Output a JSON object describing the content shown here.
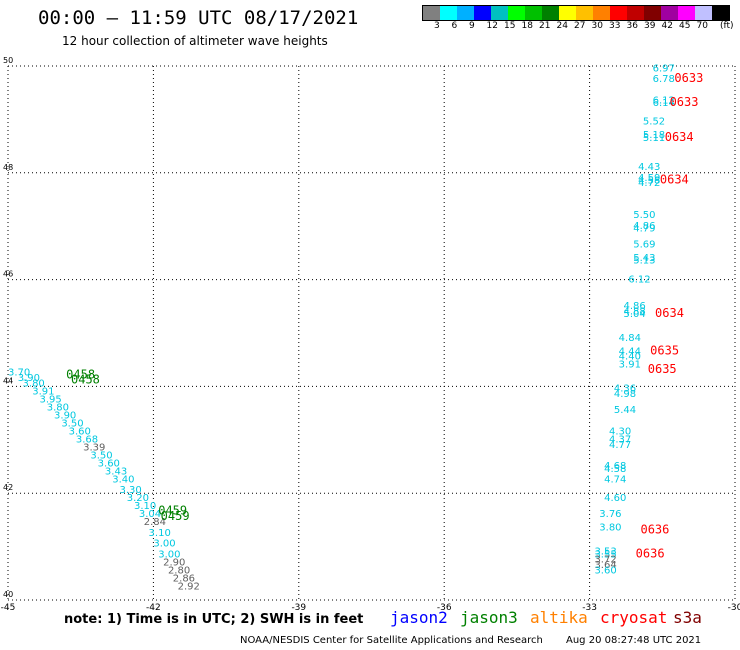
{
  "header": {
    "title": "00:00 – 11:59 UTC 08/17/2021",
    "subtitle": "12 hour collection of altimeter wave heights"
  },
  "legend": {
    "colors": [
      "#808080",
      "#00ffff",
      "#00b0ff",
      "#0000ff",
      "#00c0c0",
      "#00ff00",
      "#00c000",
      "#008000",
      "#ffff00",
      "#ffc000",
      "#ff8000",
      "#ff0000",
      "#c00000",
      "#800000",
      "#a000a0",
      "#ff00ff",
      "#c0c0ff",
      "#000000"
    ],
    "labels": [
      "3",
      "6",
      "9",
      "12",
      "15",
      "18",
      "21",
      "24",
      "27",
      "30",
      "33",
      "36",
      "39",
      "42",
      "45",
      "70"
    ],
    "unit": "(ft)"
  },
  "chart_data": {
    "type": "scatter",
    "xlim": [
      -45,
      -30
    ],
    "ylim": [
      40,
      50
    ],
    "x_ticks": [
      "-45",
      "-42",
      "-39",
      "-36",
      "-33",
      "-30"
    ],
    "y_ticks": [
      "40",
      "42",
      "44",
      "46",
      "48",
      "50"
    ],
    "grid": true,
    "points_right": [
      {
        "lon": -31.7,
        "lat": 49.9,
        "swh": "6.97"
      },
      {
        "lon": -31.7,
        "lat": 49.7,
        "swh": "6.78"
      },
      {
        "lon": -31.7,
        "lat": 49.3,
        "swh": "6.12"
      },
      {
        "lon": -31.7,
        "lat": 49.25,
        "swh": "6.14"
      },
      {
        "lon": -31.9,
        "lat": 48.9,
        "swh": "5.52"
      },
      {
        "lon": -31.9,
        "lat": 48.65,
        "swh": "5.18"
      },
      {
        "lon": -31.9,
        "lat": 48.6,
        "swh": "5.11"
      },
      {
        "lon": -32.0,
        "lat": 48.05,
        "swh": "4.43"
      },
      {
        "lon": -32.0,
        "lat": 47.85,
        "swh": "4.59"
      },
      {
        "lon": -32.0,
        "lat": 47.8,
        "swh": "4.58"
      },
      {
        "lon": -32.0,
        "lat": 47.75,
        "swh": "4.72"
      },
      {
        "lon": -32.1,
        "lat": 47.15,
        "swh": "5.50"
      },
      {
        "lon": -32.1,
        "lat": 46.95,
        "swh": "4.86"
      },
      {
        "lon": -32.1,
        "lat": 46.9,
        "swh": "4.79"
      },
      {
        "lon": -32.1,
        "lat": 46.6,
        "swh": "5.69"
      },
      {
        "lon": -32.1,
        "lat": 46.35,
        "swh": "5.43"
      },
      {
        "lon": -32.1,
        "lat": 46.3,
        "swh": "5.13"
      },
      {
        "lon": -32.2,
        "lat": 45.95,
        "swh": "6.12"
      },
      {
        "lon": -32.3,
        "lat": 45.45,
        "swh": "4.86"
      },
      {
        "lon": -32.3,
        "lat": 45.35,
        "swh": "4.88"
      },
      {
        "lon": -32.3,
        "lat": 45.3,
        "swh": "5.04"
      },
      {
        "lon": -32.4,
        "lat": 44.85,
        "swh": "4.84"
      },
      {
        "lon": -32.4,
        "lat": 44.6,
        "swh": "4.44"
      },
      {
        "lon": -32.4,
        "lat": 44.5,
        "swh": "4.40"
      },
      {
        "lon": -32.4,
        "lat": 44.35,
        "swh": "3.91"
      },
      {
        "lon": -32.5,
        "lat": 43.9,
        "swh": "4.36"
      },
      {
        "lon": -32.5,
        "lat": 43.8,
        "swh": "4.98"
      },
      {
        "lon": -32.5,
        "lat": 43.5,
        "swh": "5.44"
      },
      {
        "lon": -32.6,
        "lat": 43.1,
        "swh": "4.30"
      },
      {
        "lon": -32.6,
        "lat": 42.95,
        "swh": "4.37"
      },
      {
        "lon": -32.6,
        "lat": 42.85,
        "swh": "4.77"
      },
      {
        "lon": -32.7,
        "lat": 42.45,
        "swh": "4.68"
      },
      {
        "lon": -32.7,
        "lat": 42.4,
        "swh": "4.58"
      },
      {
        "lon": -32.7,
        "lat": 42.2,
        "swh": "4.74"
      },
      {
        "lon": -32.7,
        "lat": 41.85,
        "swh": "4.60"
      },
      {
        "lon": -32.8,
        "lat": 41.55,
        "swh": "3.76"
      },
      {
        "lon": -32.8,
        "lat": 41.3,
        "swh": "3.80"
      },
      {
        "lon": -32.9,
        "lat": 40.85,
        "swh": "3.53"
      },
      {
        "lon": -32.9,
        "lat": 40.8,
        "swh": "3.55"
      },
      {
        "lon": -32.9,
        "lat": 40.7,
        "swh": "3.72",
        "gray": true
      },
      {
        "lon": -32.9,
        "lat": 40.6,
        "swh": "3.64",
        "gray": true
      },
      {
        "lon": -32.9,
        "lat": 40.5,
        "swh": "3.60"
      }
    ],
    "points_diag": [
      {
        "lon": -45.0,
        "lat": 44.2,
        "swh": "3.70"
      },
      {
        "lon": -44.8,
        "lat": 44.1,
        "swh": "3.90"
      },
      {
        "lon": -44.7,
        "lat": 44.0,
        "swh": "3.80"
      },
      {
        "lon": -44.5,
        "lat": 43.85,
        "swh": "3.91"
      },
      {
        "lon": -44.35,
        "lat": 43.7,
        "swh": "3.95"
      },
      {
        "lon": -44.2,
        "lat": 43.55,
        "swh": "3.80"
      },
      {
        "lon": -44.05,
        "lat": 43.4,
        "swh": "3.90"
      },
      {
        "lon": -43.9,
        "lat": 43.25,
        "swh": "3.50"
      },
      {
        "lon": -43.75,
        "lat": 43.1,
        "swh": "3.60"
      },
      {
        "lon": -43.6,
        "lat": 42.95,
        "swh": "3.68"
      },
      {
        "lon": -43.45,
        "lat": 42.8,
        "swh": "3.39",
        "gray": true
      },
      {
        "lon": -43.3,
        "lat": 42.65,
        "swh": "3.50"
      },
      {
        "lon": -43.15,
        "lat": 42.5,
        "swh": "3.60"
      },
      {
        "lon": -43.0,
        "lat": 42.35,
        "swh": "3.43"
      },
      {
        "lon": -42.85,
        "lat": 42.2,
        "swh": "3.40"
      },
      {
        "lon": -42.7,
        "lat": 42.0,
        "swh": "3.30"
      },
      {
        "lon": -42.55,
        "lat": 41.85,
        "swh": "3.20"
      },
      {
        "lon": -42.4,
        "lat": 41.7,
        "swh": "3.10"
      },
      {
        "lon": -42.3,
        "lat": 41.55,
        "swh": "3.04"
      },
      {
        "lon": -42.2,
        "lat": 41.4,
        "swh": "2.84",
        "gray": true
      },
      {
        "lon": -42.1,
        "lat": 41.2,
        "swh": "3.10"
      },
      {
        "lon": -42.0,
        "lat": 41.0,
        "swh": "3.00"
      },
      {
        "lon": -41.9,
        "lat": 40.8,
        "swh": "3.00"
      },
      {
        "lon": -41.8,
        "lat": 40.65,
        "swh": "2.90",
        "gray": true
      },
      {
        "lon": -41.7,
        "lat": 40.5,
        "swh": "2.80",
        "gray": true
      },
      {
        "lon": -41.6,
        "lat": 40.35,
        "swh": "2.86",
        "gray": true
      },
      {
        "lon": -41.5,
        "lat": 40.2,
        "swh": "2.92",
        "gray": true
      }
    ],
    "time_labels": [
      {
        "lon": -31.25,
        "lat": 49.7,
        "text": "0633",
        "color": "#ff0000"
      },
      {
        "lon": -31.35,
        "lat": 49.25,
        "text": "0633",
        "color": "#ff0000"
      },
      {
        "lon": -31.45,
        "lat": 48.6,
        "text": "0634",
        "color": "#ff0000"
      },
      {
        "lon": -31.55,
        "lat": 47.8,
        "text": "0634",
        "color": "#ff0000"
      },
      {
        "lon": -31.65,
        "lat": 45.3,
        "text": "0634",
        "color": "#ff0000"
      },
      {
        "lon": -31.75,
        "lat": 44.6,
        "text": "0635",
        "color": "#ff0000"
      },
      {
        "lon": -31.8,
        "lat": 44.25,
        "text": "0635",
        "color": "#ff0000"
      },
      {
        "lon": -31.95,
        "lat": 41.25,
        "text": "0636",
        "color": "#ff0000"
      },
      {
        "lon": -32.05,
        "lat": 40.8,
        "text": "0636",
        "color": "#ff0000"
      },
      {
        "lon": -43.8,
        "lat": 44.15,
        "text": "0458",
        "color": "#008000"
      },
      {
        "lon": -43.7,
        "lat": 44.05,
        "text": "0458",
        "color": "#008000"
      },
      {
        "lon": -41.9,
        "lat": 41.6,
        "text": "0459",
        "color": "#008000"
      },
      {
        "lon": -41.85,
        "lat": 41.5,
        "text": "0459",
        "color": "#008000"
      }
    ]
  },
  "footer": {
    "note": "note: 1) Time is in UTC; 2) SWH is in feet",
    "satellites": [
      {
        "name": "jason2",
        "color": "#0000ff"
      },
      {
        "name": "jason3",
        "color": "#008000"
      },
      {
        "name": "altika",
        "color": "#ff8000"
      },
      {
        "name": "cryosat",
        "color": "#ff0000"
      },
      {
        "name": "s3a",
        "color": "#800000"
      }
    ],
    "credit": "NOAA/NESDIS Center for Satellite Applications and Research",
    "date": "Aug 20 08:27:48 UTC 2021"
  }
}
